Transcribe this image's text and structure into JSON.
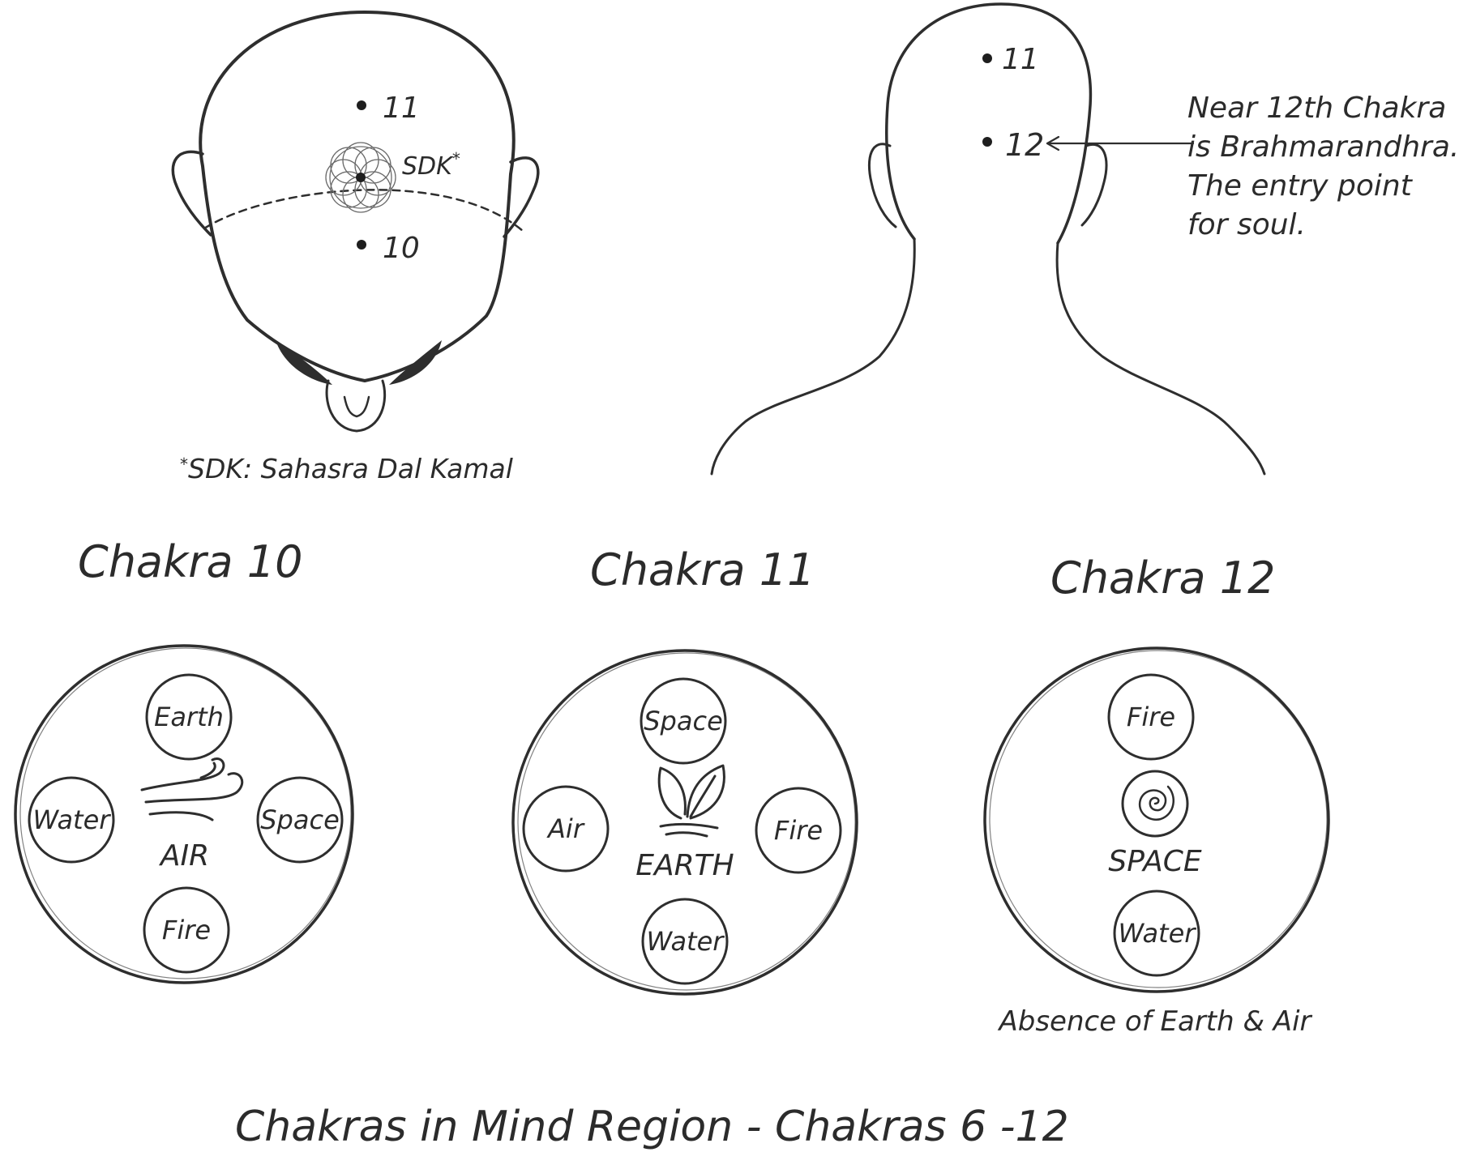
{
  "title": "Chakras in Mind Region - Chakras 6 -12",
  "head_top_view": {
    "point_upper": "11",
    "point_lower": "10",
    "flower_label": "SDK",
    "flower_label_mark": "*",
    "footnote_mark": "*",
    "footnote": "SDK: Sahasra Dal Kamal"
  },
  "head_back_view": {
    "point_upper": "11",
    "point_lower": "12",
    "note_lines": [
      "Near 12th Chakra",
      "is Brahmarandhra.",
      "The entry point",
      "for soul."
    ]
  },
  "chakras": [
    {
      "title": "Chakra 10",
      "element": "AIR",
      "symbol_icon": "wind-icon",
      "top": "Earth",
      "left": "Water",
      "right": "Space",
      "bottom": "Fire",
      "note": ""
    },
    {
      "title": "Chakra 11",
      "element": "EARTH",
      "symbol_icon": "leaf-icon",
      "top": "Space",
      "left": "Air",
      "right": "Fire",
      "bottom": "Water",
      "note": ""
    },
    {
      "title": "Chakra 12",
      "element": "SPACE",
      "symbol_icon": "spiral-icon",
      "top": "Fire",
      "left": "",
      "right": "",
      "bottom": "Water",
      "note": "Absence of Earth & Air"
    }
  ]
}
